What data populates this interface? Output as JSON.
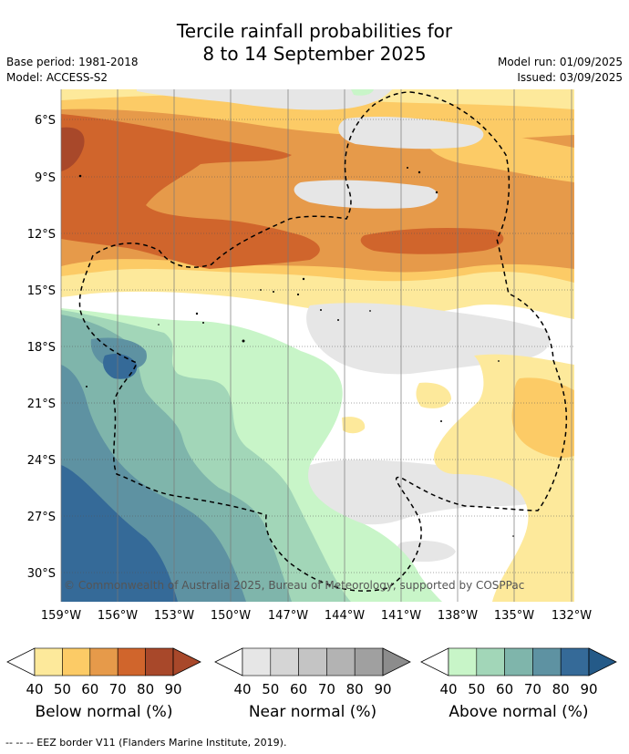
{
  "header": {
    "title_line1": "Tercile rainfall probabilities for",
    "title_line2": "8 to 14 September 2025",
    "base_period": "Base period: 1981-2018",
    "model": "Model: ACCESS-S2",
    "model_run": "Model run: 01/09/2025",
    "issued": "Issued: 03/09/2025"
  },
  "map": {
    "lat_labels": [
      "6°S",
      "9°S",
      "12°S",
      "15°S",
      "18°S",
      "21°S",
      "24°S",
      "27°S",
      "30°S"
    ],
    "lon_labels": [
      "159°W",
      "156°W",
      "153°W",
      "150°W",
      "147°W",
      "144°W",
      "141°W",
      "138°W",
      "135°W",
      "132°W"
    ],
    "copyright": "© Commonwealth of Australia 2025, Bureau of Meteorology, supported by COSPPac"
  },
  "legends": [
    {
      "name": "Below normal (%)",
      "ticks": [
        "40",
        "50",
        "60",
        "70",
        "80",
        "90"
      ],
      "colors": [
        "#ffffff",
        "#fde99b",
        "#fccb66",
        "#e69a4a",
        "#d0652c",
        "#a8482a",
        "#a8482a"
      ]
    },
    {
      "name": "Near normal (%)",
      "ticks": [
        "40",
        "50",
        "60",
        "70",
        "80",
        "90"
      ],
      "colors": [
        "#ffffff",
        "#e6e6e6",
        "#d5d5d5",
        "#c4c4c4",
        "#b3b3b3",
        "#a0a0a0",
        "#8c8c8c"
      ]
    },
    {
      "name": "Above normal (%)",
      "ticks": [
        "40",
        "50",
        "60",
        "70",
        "80",
        "90"
      ],
      "colors": [
        "#ffffff",
        "#c8f5c8",
        "#a2d6b8",
        "#7fb5ab",
        "#5e92a2",
        "#356a98",
        "#245a88"
      ]
    }
  ],
  "footer": {
    "text": "--  --  -- EEZ border V11 (Flanders Marine Institute, 2019)."
  }
}
